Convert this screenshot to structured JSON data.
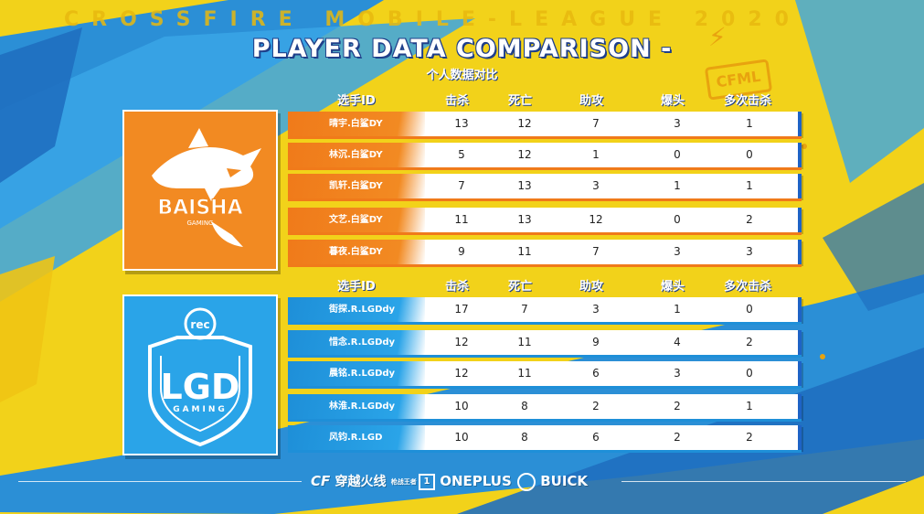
{
  "header": {
    "league_banner": "CROSSFIRE MOBILE-LEAGUE 2020",
    "title": "PLAYER DATA COMPARISON -",
    "subtitle": "个人数据对比",
    "badge": "CFML"
  },
  "columns": [
    "选手ID",
    "击杀",
    "死亡",
    "助攻",
    "爆头",
    "多次击杀"
  ],
  "teams": [
    {
      "logo_text": "BAISHA",
      "logo_sub": "GAMING",
      "color": "#f28a22",
      "players": [
        {
          "id": "晴宇.白鲨DY",
          "kills": "13",
          "deaths": "12",
          "assists": "7",
          "headshots": "3",
          "multi": "1"
        },
        {
          "id": "林沉.白鲨DY",
          "kills": "5",
          "deaths": "12",
          "assists": "1",
          "headshots": "0",
          "multi": "0"
        },
        {
          "id": "凯轩.白鲨DY",
          "kills": "7",
          "deaths": "13",
          "assists": "3",
          "headshots": "1",
          "multi": "1"
        },
        {
          "id": "文艺.白鲨DY",
          "kills": "11",
          "deaths": "13",
          "assists": "12",
          "headshots": "0",
          "multi": "2"
        },
        {
          "id": "暮夜.白鲨DY",
          "kills": "9",
          "deaths": "11",
          "assists": "7",
          "headshots": "3",
          "multi": "3"
        }
      ]
    },
    {
      "logo_text": "LGD",
      "logo_sub": "GAMING",
      "logo_top": "rec",
      "color": "#2aa4e8",
      "players": [
        {
          "id": "街探.R.LGDdy",
          "kills": "17",
          "deaths": "7",
          "assists": "3",
          "headshots": "1",
          "multi": "0"
        },
        {
          "id": "惜念.R.LGDdy",
          "kills": "12",
          "deaths": "11",
          "assists": "9",
          "headshots": "4",
          "multi": "2"
        },
        {
          "id": "晨铭.R.LGDdy",
          "kills": "12",
          "deaths": "11",
          "assists": "6",
          "headshots": "3",
          "multi": "0"
        },
        {
          "id": "林淮.R.LGDdy",
          "kills": "10",
          "deaths": "8",
          "assists": "2",
          "headshots": "2",
          "multi": "1"
        },
        {
          "id": "风钧.R.LGD",
          "kills": "10",
          "deaths": "8",
          "assists": "6",
          "headshots": "2",
          "multi": "2"
        }
      ]
    }
  ],
  "sponsors": {
    "game": "穿越火线",
    "game_sub": "枪战王者",
    "oneplus": "ONEPLUS",
    "buick": "BUICK"
  },
  "colors": {
    "background": "#f2d21a",
    "orange": "#f28a22",
    "blue": "#2aa4e8",
    "dark_blue": "#1e63c6"
  }
}
